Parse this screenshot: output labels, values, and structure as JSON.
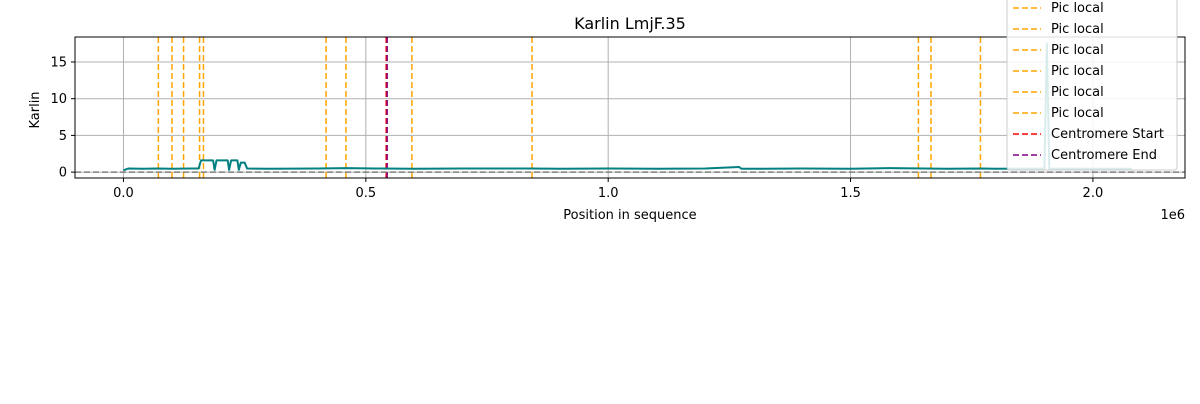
{
  "chart_data": {
    "type": "line",
    "title": "Karlin LmjF.35",
    "xlabel": "Position in sequence",
    "ylabel": "Karlin",
    "x_offset_label": "1e6",
    "xlim": [
      -100000,
      2190000
    ],
    "ylim": [
      -0.8,
      18.4
    ],
    "grid": true,
    "legend_position": "top-right",
    "x_ticks": [
      {
        "value": 0,
        "label": "0.0"
      },
      {
        "value": 500000,
        "label": "0.5"
      },
      {
        "value": 1000000,
        "label": "1.0"
      },
      {
        "value": 1500000,
        "label": "1.5"
      },
      {
        "value": 2000000,
        "label": "2.0"
      }
    ],
    "y_ticks": [
      {
        "value": 0,
        "label": "0"
      },
      {
        "value": 5,
        "label": "5"
      },
      {
        "value": 10,
        "label": "10"
      },
      {
        "value": 15,
        "label": "15"
      }
    ],
    "baseline": {
      "y": 0,
      "color": "#808080"
    },
    "series": [
      {
        "color": "#008080",
        "points": [
          [
            0,
            0.25
          ],
          [
            10000,
            0.5
          ],
          [
            40000,
            0.45
          ],
          [
            70000,
            0.5
          ],
          [
            100000,
            0.45
          ],
          [
            140000,
            0.5
          ],
          [
            155000,
            0.5
          ],
          [
            160000,
            1.6
          ],
          [
            185000,
            1.6
          ],
          [
            188000,
            0.3
          ],
          [
            192000,
            1.6
          ],
          [
            215000,
            1.6
          ],
          [
            218000,
            0.3
          ],
          [
            222000,
            1.6
          ],
          [
            235000,
            1.6
          ],
          [
            238000,
            0.3
          ],
          [
            242000,
            1.3
          ],
          [
            250000,
            1.3
          ],
          [
            255000,
            0.5
          ],
          [
            300000,
            0.45
          ],
          [
            400000,
            0.5
          ],
          [
            460000,
            0.55
          ],
          [
            520000,
            0.5
          ],
          [
            600000,
            0.45
          ],
          [
            700000,
            0.5
          ],
          [
            840000,
            0.5
          ],
          [
            900000,
            0.45
          ],
          [
            1000000,
            0.5
          ],
          [
            1100000,
            0.45
          ],
          [
            1200000,
            0.5
          ],
          [
            1270000,
            0.7
          ],
          [
            1275000,
            0.45
          ],
          [
            1400000,
            0.5
          ],
          [
            1500000,
            0.45
          ],
          [
            1580000,
            0.55
          ],
          [
            1700000,
            0.45
          ],
          [
            1770000,
            0.5
          ],
          [
            1800000,
            0.45
          ],
          [
            1900000,
            0.5
          ],
          [
            1905000,
            17.5
          ],
          [
            1910000,
            0.5
          ],
          [
            2000000,
            0.45
          ],
          [
            2080000,
            0.45
          ]
        ]
      }
    ],
    "vlines": [
      {
        "x": 72000,
        "color": "#FFA500",
        "style": "dashed"
      },
      {
        "x": 100000,
        "color": "#FFA500",
        "style": "dashed"
      },
      {
        "x": 124000,
        "color": "#FFA500",
        "style": "dashed"
      },
      {
        "x": 157000,
        "color": "#FFA500",
        "style": "dashed"
      },
      {
        "x": 165000,
        "color": "#FFA500",
        "style": "dashed"
      },
      {
        "x": 418000,
        "color": "#FFA500",
        "style": "dashed"
      },
      {
        "x": 459000,
        "color": "#FFA500",
        "style": "dashed"
      },
      {
        "x": 595000,
        "color": "#FFA500",
        "style": "dashed"
      },
      {
        "x": 843000,
        "color": "#FFA500",
        "style": "dashed"
      },
      {
        "x": 1640000,
        "color": "#FFA500",
        "style": "dashed"
      },
      {
        "x": 1666000,
        "color": "#FFA500",
        "style": "dashed"
      },
      {
        "x": 1768000,
        "color": "#FFA500",
        "style": "dashed"
      },
      {
        "x": 542000,
        "color": "#FF0000",
        "style": "dashed"
      },
      {
        "x": 544000,
        "color": "#800080",
        "style": "dashed"
      }
    ],
    "legend": [
      {
        "label": "Pic local",
        "color": "#FFA500"
      },
      {
        "label": "Pic local",
        "color": "#FFA500"
      },
      {
        "label": "Pic local",
        "color": "#FFA500"
      },
      {
        "label": "Pic local",
        "color": "#FFA500"
      },
      {
        "label": "Pic local",
        "color": "#FFA500"
      },
      {
        "label": "Pic local",
        "color": "#FFA500"
      },
      {
        "label": "Pic local",
        "color": "#FFA500"
      },
      {
        "label": "Centromere Start",
        "color": "#FF0000"
      },
      {
        "label": "Centromere End",
        "color": "#800080"
      }
    ]
  }
}
